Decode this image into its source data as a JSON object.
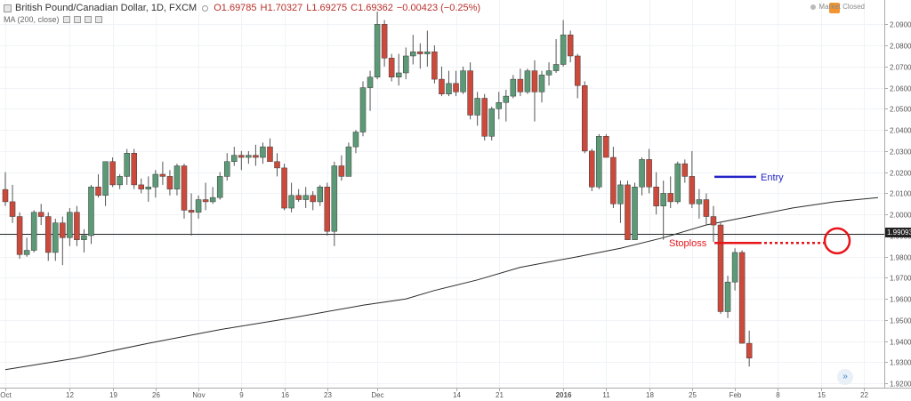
{
  "legend": {
    "symbol": "British Pound/Canadian Dollar, 1D, FXCM",
    "open": "O1.69785",
    "high": "H1.70327",
    "low": "L1.69275",
    "close": "C1.69362",
    "change": "−0.00423 (−0.25%)",
    "indicator": "MA (200, close)"
  },
  "market_status": "Market Closed",
  "last_price_label": "1.99093",
  "colors": {
    "up": "#5c9a77",
    "down": "#cc4a3b",
    "ma": "#2b2b2b",
    "entry": "#2323c8",
    "stop": "#e8141a",
    "grid": "#f0f3f6"
  },
  "annotations": {
    "entry": "Entry",
    "stoploss": "Stoploss"
  },
  "chart_data": {
    "type": "candlestick",
    "ylim": [
      1.918,
      2.1015
    ],
    "y_ticks": [
      1.92,
      1.93,
      1.94,
      1.95,
      1.96,
      1.97,
      1.98,
      1.99,
      2.0,
      2.01,
      2.02,
      2.03,
      2.04,
      2.05,
      2.06,
      2.07,
      2.08,
      2.09
    ],
    "y_tick_labels": [
      "1.92000",
      "1.93000",
      "1.94000",
      "1.95000",
      "1.96000",
      "1.97000",
      "1.98000",
      "1.99000",
      "2.00000",
      "2.01000",
      "2.02000",
      "2.03000",
      "2.04000",
      "2.05000",
      "2.06000",
      "2.07000",
      "2.08000",
      "2.09000"
    ],
    "x_tick_labels": [
      {
        "label": "Oct",
        "i": 0
      },
      {
        "label": "12",
        "i": 9
      },
      {
        "label": "19",
        "i": 15
      },
      {
        "label": "26",
        "i": 21
      },
      {
        "label": "Nov",
        "i": 27
      },
      {
        "label": "9",
        "i": 33
      },
      {
        "label": "16",
        "i": 39
      },
      {
        "label": "23",
        "i": 45
      },
      {
        "label": "Dec",
        "i": 52
      },
      {
        "label": "14",
        "i": 63
      },
      {
        "label": "21",
        "i": 69
      },
      {
        "label": "2016",
        "i": 78
      },
      {
        "label": "11",
        "i": 84
      },
      {
        "label": "18",
        "i": 90
      },
      {
        "label": "25",
        "i": 96
      },
      {
        "label": "Feb",
        "i": 102
      },
      {
        "label": "8",
        "i": 108
      },
      {
        "label": "15",
        "i": 114
      },
      {
        "label": "22",
        "i": 120
      }
    ],
    "last_price": 1.99093,
    "candles": [
      [
        2.0118,
        2.02,
        2.004,
        2.006
      ],
      [
        2.006,
        2.014,
        1.996,
        1.999
      ],
      [
        1.999,
        2.001,
        1.979,
        1.981
      ],
      [
        1.981,
        1.989,
        1.98,
        1.983
      ],
      [
        1.983,
        2.002,
        1.982,
        2.001
      ],
      [
        2.001,
        2.005,
        1.995,
        1.999
      ],
      [
        1.999,
        2.001,
        1.978,
        1.982
      ],
      [
        1.982,
        1.998,
        1.978,
        1.996
      ],
      [
        1.996,
        1.999,
        1.976,
        1.989
      ],
      [
        1.989,
        2.003,
        1.985,
        2.001
      ],
      [
        2.001,
        2.004,
        1.985,
        1.988
      ],
      [
        1.988,
        1.993,
        1.982,
        1.99
      ],
      [
        1.99,
        2.014,
        1.986,
        2.013
      ],
      [
        2.013,
        2.019,
        2.008,
        2.009
      ],
      [
        2.009,
        2.025,
        2.004,
        2.025
      ],
      [
        2.025,
        2.027,
        2.013,
        2.014
      ],
      [
        2.014,
        2.019,
        2.012,
        2.018
      ],
      [
        2.018,
        2.031,
        2.014,
        2.029
      ],
      [
        2.029,
        2.031,
        2.012,
        2.014
      ],
      [
        2.014,
        2.017,
        2.01,
        2.012
      ],
      [
        2.012,
        2.018,
        2.006,
        2.013
      ],
      [
        2.013,
        2.021,
        2.008,
        2.019
      ],
      [
        2.019,
        2.025,
        2.014,
        2.018
      ],
      [
        2.018,
        2.021,
        2.009,
        2.012
      ],
      [
        2.012,
        2.024,
        2.009,
        2.023
      ],
      [
        2.023,
        2.024,
        1.998,
        2.002
      ],
      [
        2.002,
        2.01,
        1.99,
        2.001
      ],
      [
        2.001,
        2.009,
        1.998,
        2.007
      ],
      [
        2.007,
        2.015,
        2.002,
        2.006
      ],
      [
        2.006,
        2.013,
        2.005,
        2.008
      ],
      [
        2.008,
        2.02,
        2.007,
        2.018
      ],
      [
        2.018,
        2.029,
        2.016,
        2.025
      ],
      [
        2.025,
        2.032,
        2.023,
        2.028
      ],
      [
        2.028,
        2.03,
        2.021,
        2.027
      ],
      [
        2.027,
        2.03,
        2.024,
        2.028
      ],
      [
        2.028,
        2.033,
        2.023,
        2.027
      ],
      [
        2.027,
        2.034,
        2.024,
        2.032
      ],
      [
        2.032,
        2.036,
        2.025,
        2.025
      ],
      [
        2.025,
        2.029,
        2.018,
        2.022
      ],
      [
        2.022,
        2.024,
        2.002,
        2.003
      ],
      [
        2.003,
        2.015,
        2.001,
        2.009
      ],
      [
        2.009,
        2.012,
        2.006,
        2.007
      ],
      [
        2.007,
        2.013,
        2.003,
        2.009
      ],
      [
        2.009,
        2.011,
        2.002,
        2.006
      ],
      [
        2.006,
        2.014,
        2.004,
        2.013
      ],
      [
        2.013,
        2.015,
        1.99,
        1.992
      ],
      [
        1.992,
        2.025,
        1.985,
        2.023
      ],
      [
        2.023,
        2.028,
        2.016,
        2.018
      ],
      [
        2.018,
        2.034,
        2.018,
        2.032
      ],
      [
        2.032,
        2.04,
        2.029,
        2.039
      ],
      [
        2.039,
        2.063,
        2.037,
        2.06
      ],
      [
        2.06,
        2.068,
        2.049,
        2.065
      ],
      [
        2.065,
        2.096,
        2.064,
        2.09
      ],
      [
        2.09,
        2.092,
        2.07,
        2.074
      ],
      [
        2.074,
        2.076,
        2.063,
        2.065
      ],
      [
        2.065,
        2.076,
        2.061,
        2.067
      ],
      [
        2.067,
        2.079,
        2.064,
        2.075
      ],
      [
        2.075,
        2.085,
        2.071,
        2.077
      ],
      [
        2.077,
        2.081,
        2.069,
        2.076
      ],
      [
        2.076,
        2.087,
        2.07,
        2.077
      ],
      [
        2.077,
        2.08,
        2.062,
        2.064
      ],
      [
        2.064,
        2.07,
        2.056,
        2.057
      ],
      [
        2.057,
        2.068,
        2.056,
        2.062
      ],
      [
        2.062,
        2.068,
        2.056,
        2.058
      ],
      [
        2.058,
        2.07,
        2.057,
        2.068
      ],
      [
        2.068,
        2.072,
        2.045,
        2.047
      ],
      [
        2.047,
        2.058,
        2.042,
        2.055
      ],
      [
        2.055,
        2.057,
        2.035,
        2.037
      ],
      [
        2.037,
        2.051,
        2.035,
        2.05
      ],
      [
        2.05,
        2.058,
        2.045,
        2.053
      ],
      [
        2.053,
        2.059,
        2.044,
        2.056
      ],
      [
        2.056,
        2.066,
        2.055,
        2.064
      ],
      [
        2.064,
        2.069,
        2.056,
        2.058
      ],
      [
        2.058,
        2.069,
        2.057,
        2.068
      ],
      [
        2.068,
        2.073,
        2.044,
        2.058
      ],
      [
        2.058,
        2.068,
        2.053,
        2.066
      ],
      [
        2.066,
        2.072,
        2.061,
        2.068
      ],
      [
        2.068,
        2.083,
        2.067,
        2.071
      ],
      [
        2.071,
        2.092,
        2.07,
        2.085
      ],
      [
        2.085,
        2.087,
        2.072,
        2.075
      ],
      [
        2.075,
        2.076,
        2.055,
        2.061
      ],
      [
        2.061,
        2.063,
        2.029,
        2.03
      ],
      [
        2.03,
        2.031,
        2.011,
        2.013
      ],
      [
        2.013,
        2.038,
        2.012,
        2.037
      ],
      [
        2.037,
        2.038,
        2.027,
        2.027
      ],
      [
        2.027,
        2.032,
        2.003,
        2.005
      ],
      [
        2.005,
        2.016,
        1.996,
        2.014
      ],
      [
        2.014,
        2.016,
        1.988,
        1.988
      ],
      [
        1.988,
        2.015,
        1.988,
        2.013
      ],
      [
        2.013,
        2.027,
        2.009,
        2.026
      ],
      [
        2.026,
        2.031,
        2.01,
        2.013
      ],
      [
        2.013,
        2.02,
        2.0,
        2.004
      ],
      [
        2.004,
        2.016,
        1.988,
        2.01
      ],
      [
        2.01,
        2.018,
        2.003,
        2.006
      ],
      [
        2.006,
        2.025,
        2.005,
        2.024
      ],
      [
        2.024,
        2.026,
        2.015,
        2.018
      ],
      [
        2.018,
        2.03,
        2.003,
        2.005
      ],
      [
        2.005,
        2.012,
        1.998,
        2.007
      ],
      [
        2.007,
        2.01,
        1.995,
        1.999
      ],
      [
        1.999,
        2.004,
        1.987,
        1.995
      ],
      [
        1.995,
        1.996,
        1.953,
        1.954
      ],
      [
        1.954,
        1.971,
        1.951,
        1.968
      ],
      [
        1.968,
        1.984,
        1.964,
        1.982
      ],
      [
        1.982,
        1.983,
        1.939,
        1.939
      ],
      [
        1.939,
        1.945,
        1.928,
        1.932
      ]
    ],
    "ma_200": [
      [
        0,
        1.9265
      ],
      [
        10,
        1.932
      ],
      [
        20,
        1.939
      ],
      [
        30,
        1.9455
      ],
      [
        40,
        1.951
      ],
      [
        50,
        1.957
      ],
      [
        56,
        1.96
      ],
      [
        60,
        1.964
      ],
      [
        66,
        1.969
      ],
      [
        72,
        1.975
      ],
      [
        80,
        1.98
      ],
      [
        86,
        1.984
      ],
      [
        92,
        1.989
      ],
      [
        98,
        1.995
      ],
      [
        104,
        1.999
      ],
      [
        110,
        2.003
      ],
      [
        116,
        2.006
      ],
      [
        122,
        2.008
      ]
    ]
  }
}
